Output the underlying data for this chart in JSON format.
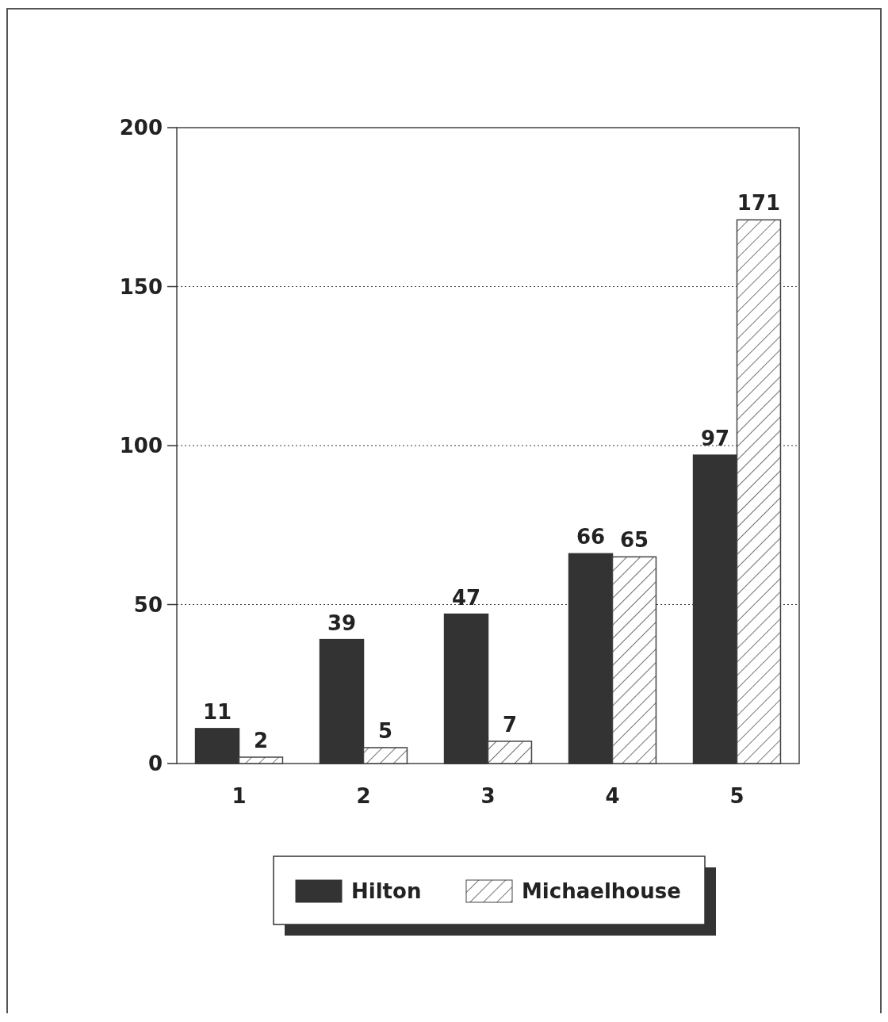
{
  "chart_data": {
    "type": "bar",
    "categories": [
      "1",
      "2",
      "3",
      "4",
      "5"
    ],
    "series": [
      {
        "name": "Hilton",
        "color": "#333333",
        "values": [
          11,
          39,
          47,
          66,
          97
        ]
      },
      {
        "name": "Michaelhouse",
        "color": "#444444",
        "values": [
          2,
          5,
          7,
          65,
          171
        ]
      }
    ],
    "ylim": [
      0,
      200
    ],
    "yticks": [
      0,
      50,
      100,
      150,
      200
    ],
    "grid": "y",
    "legend": "bottom",
    "data_labels": true
  }
}
